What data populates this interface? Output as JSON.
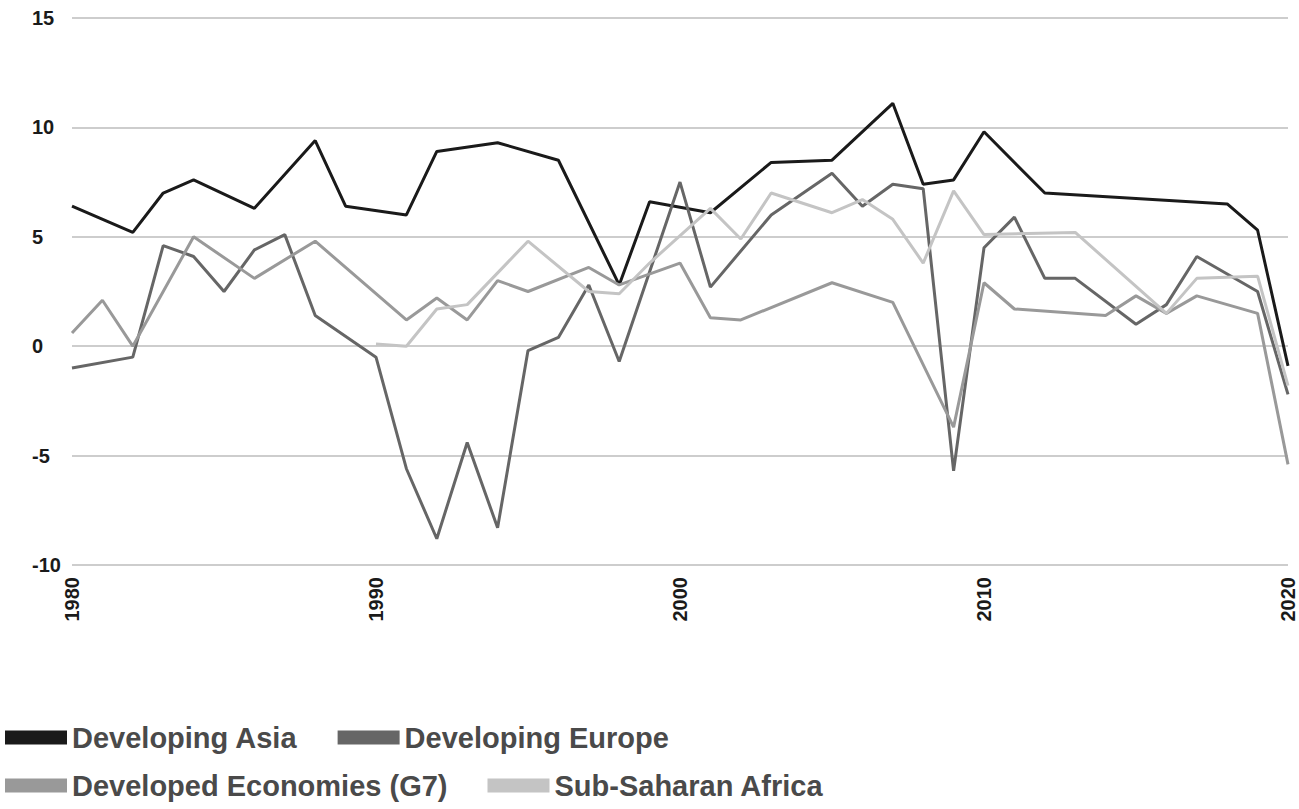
{
  "chart_data": {
    "type": "line",
    "xlim": [
      1980,
      2020
    ],
    "xticks": [
      1980,
      1990,
      2000,
      2010,
      2020
    ],
    "ylim": [
      -10,
      15
    ],
    "yticks": [
      -10,
      -5,
      0,
      5,
      10,
      15
    ],
    "grid": true,
    "legend": "bottom",
    "series": [
      {
        "name": "Developing Asia",
        "color": "#1a1a1a",
        "x": [
          1980,
          1982,
          1983,
          1984,
          1986,
          1988,
          1989,
          1991,
          1992,
          1994,
          1996,
          1998,
          1999,
          2001,
          2003,
          2005,
          2007,
          2008,
          2009,
          2010,
          2012,
          2018,
          2019,
          2020
        ],
        "values": [
          6.4,
          5.2,
          7.0,
          7.6,
          6.3,
          9.4,
          6.4,
          6.0,
          8.9,
          9.3,
          8.5,
          2.8,
          6.6,
          6.1,
          8.4,
          8.5,
          11.1,
          7.4,
          7.6,
          9.8,
          7.0,
          6.5,
          5.3,
          -0.9
        ]
      },
      {
        "name": "Developing Europe",
        "color": "#666666",
        "x": [
          1980,
          1982,
          1983,
          1984,
          1985,
          1986,
          1987,
          1988,
          1990,
          1991,
          1992,
          1993,
          1994,
          1995,
          1996,
          1997,
          1998,
          2000,
          2001,
          2003,
          2005,
          2006,
          2007,
          2008,
          2009,
          2010,
          2011,
          2012,
          2013,
          2015,
          2016,
          2017,
          2019,
          2020
        ],
        "values": [
          -1.0,
          -0.5,
          4.6,
          4.1,
          2.5,
          4.4,
          5.1,
          1.4,
          -0.5,
          -5.6,
          -8.8,
          -4.4,
          -8.3,
          -0.2,
          0.4,
          2.8,
          -0.7,
          7.5,
          2.7,
          6.0,
          7.9,
          6.4,
          7.4,
          7.2,
          -5.7,
          4.5,
          5.9,
          3.1,
          3.1,
          1.0,
          1.9,
          4.1,
          2.5,
          -2.2
        ]
      },
      {
        "name": "Developed Economies (G7)",
        "color": "#999999",
        "x": [
          1980,
          1981,
          1982,
          1984,
          1986,
          1988,
          1991,
          1992,
          1993,
          1994,
          1995,
          1997,
          1998,
          2000,
          2001,
          2002,
          2005,
          2007,
          2009,
          2010,
          2011,
          2014,
          2015,
          2016,
          2017,
          2019,
          2020
        ],
        "values": [
          0.6,
          2.1,
          0.0,
          5.0,
          3.1,
          4.8,
          1.2,
          2.2,
          1.2,
          3.0,
          2.5,
          3.6,
          2.8,
          3.8,
          1.3,
          1.2,
          2.9,
          2.0,
          -3.7,
          2.9,
          1.7,
          1.4,
          2.3,
          1.5,
          2.3,
          1.5,
          -5.4
        ]
      },
      {
        "name": "Sub-Saharan Africa",
        "color": "#c4c4c4",
        "x": [
          1990,
          1991,
          1992,
          1993,
          1995,
          1997,
          1998,
          1999,
          2001,
          2002,
          2003,
          2005,
          2006,
          2007,
          2008,
          2009,
          2010,
          2013,
          2016,
          2017,
          2019,
          2020
        ],
        "values": [
          0.1,
          0.0,
          1.7,
          1.9,
          4.8,
          2.5,
          2.4,
          3.8,
          6.3,
          4.9,
          7.0,
          6.1,
          6.7,
          5.8,
          3.8,
          7.1,
          5.1,
          5.2,
          1.5,
          3.1,
          3.2,
          -1.8
        ]
      }
    ]
  }
}
